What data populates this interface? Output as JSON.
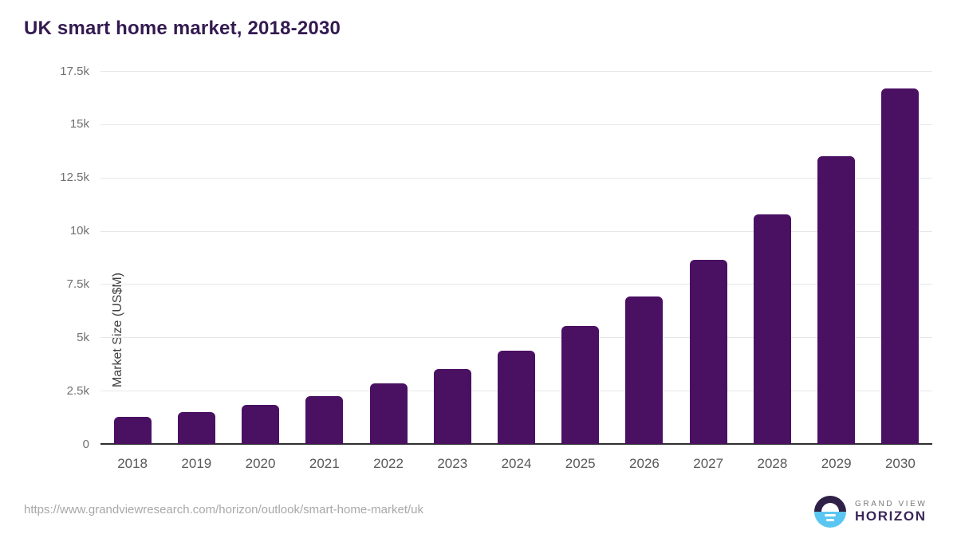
{
  "title": "UK smart home market, 2018-2030",
  "chart_data": {
    "type": "bar",
    "title": "UK smart home market, 2018-2030",
    "categories": [
      "2018",
      "2019",
      "2020",
      "2021",
      "2022",
      "2023",
      "2024",
      "2025",
      "2026",
      "2027",
      "2028",
      "2029",
      "2030"
    ],
    "values": [
      1270,
      1490,
      1830,
      2260,
      2850,
      3510,
      4390,
      5540,
      6900,
      8620,
      10770,
      13500,
      16690
    ],
    "xlabel": "",
    "ylabel": "Market Size (US$M)",
    "ylim": [
      0,
      17500
    ],
    "ytick_values": [
      0,
      2500,
      5000,
      7500,
      10000,
      12500,
      15000,
      17500
    ],
    "ytick_labels": [
      "0",
      "2.5k",
      "5k",
      "7.5k",
      "10k",
      "12.5k",
      "15k",
      "17.5k"
    ],
    "grid": "horizontal",
    "legend": "none",
    "bar_color": "#4a1062"
  },
  "footer": {
    "source_url": "https://www.grandviewresearch.com/horizon/outlook/smart-home-market/uk",
    "logo": {
      "line1": "GRAND VIEW",
      "line2": "HORIZON"
    }
  },
  "colors": {
    "bar": "#4a1062",
    "title_text": "#331a50",
    "grid": "#e7e7e7",
    "axis_line": "#2e2e2e",
    "y_tick_text": "#707070",
    "x_tick_text": "#58595b",
    "url_text": "#a8a8a8",
    "logo_dark": "#2f2048",
    "logo_blue": "#5cc6f2",
    "logo_purple": "#3b2559"
  }
}
